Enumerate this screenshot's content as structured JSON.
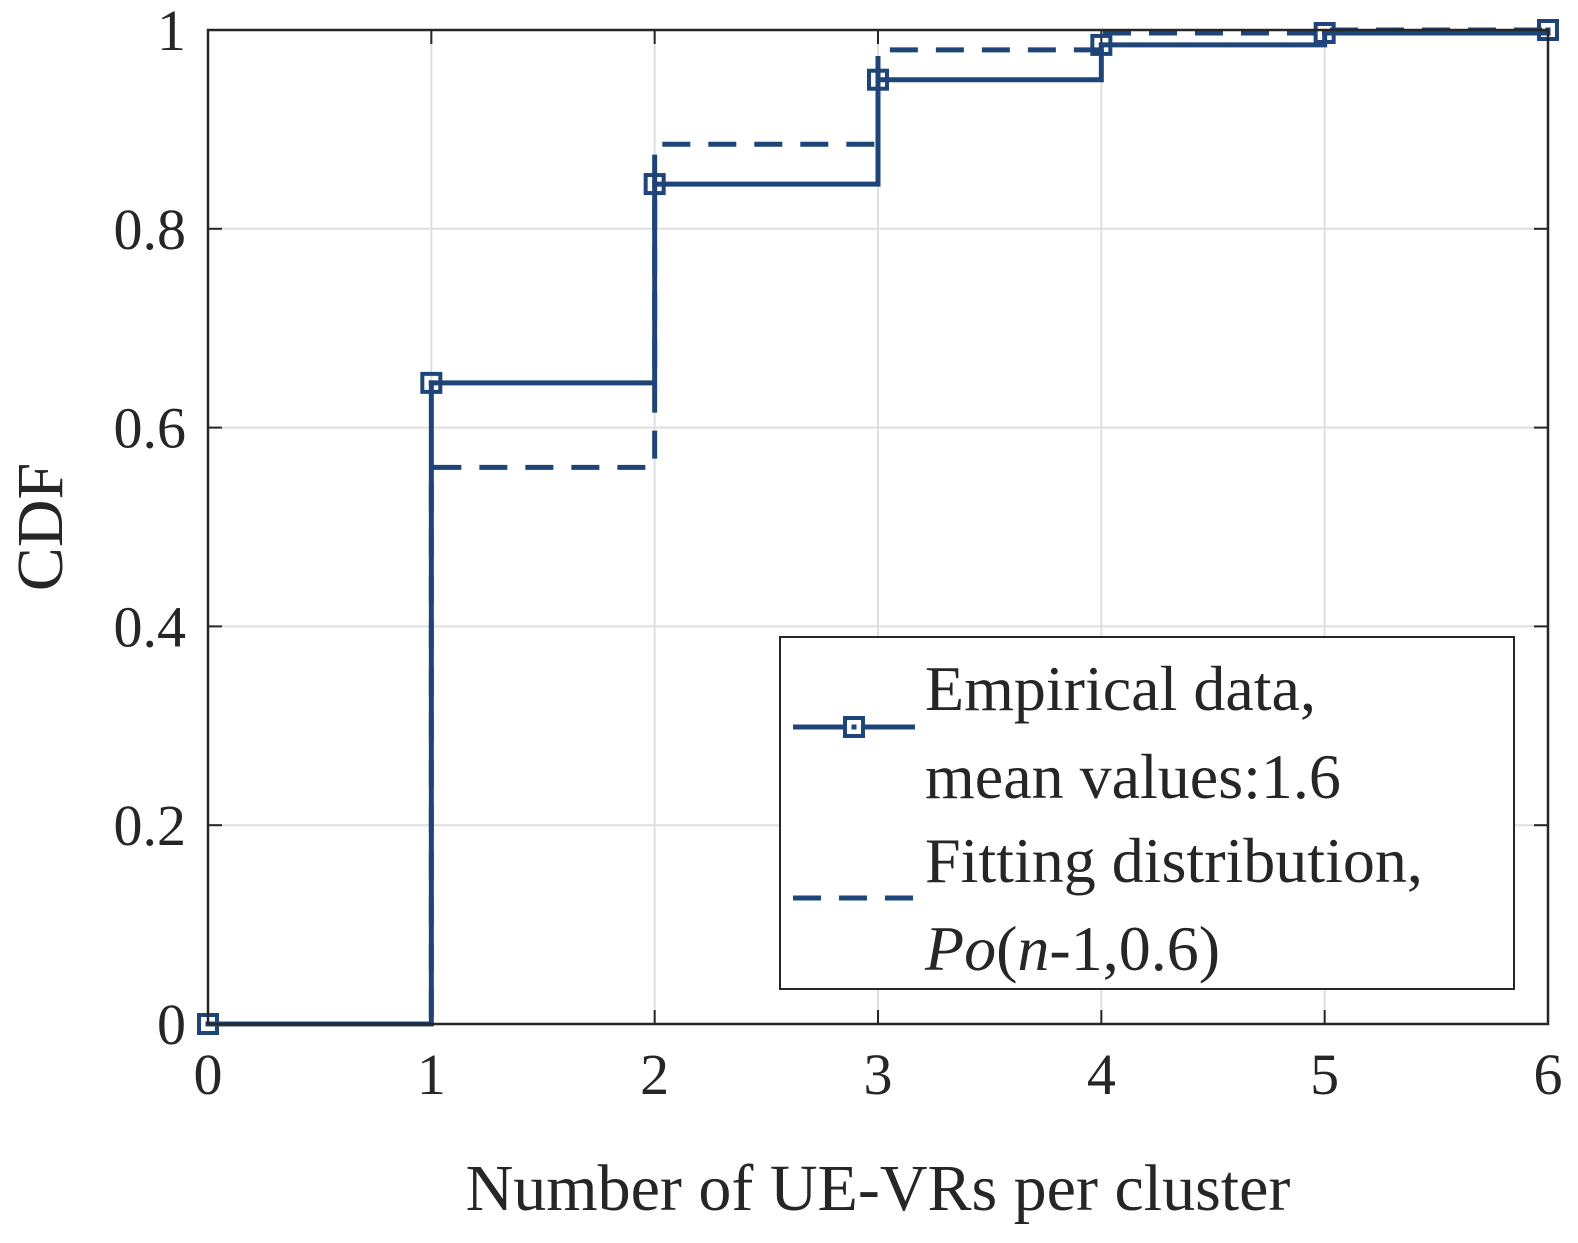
{
  "chart_data": {
    "type": "line",
    "subtype": "step-cdf",
    "title": "",
    "xlabel": "Number of UE-VRs per cluster",
    "ylabel": "CDF",
    "xlim": [
      0,
      6
    ],
    "ylim": [
      0,
      1
    ],
    "xticks": [
      0,
      1,
      2,
      3,
      4,
      5,
      6
    ],
    "xtick_labels": [
      "0",
      "1",
      "2",
      "3",
      "4",
      "5",
      "6"
    ],
    "yticks": [
      0,
      0.2,
      0.4,
      0.6,
      0.8,
      1
    ],
    "ytick_labels": [
      "0",
      "0.2",
      "0.4",
      "0.6",
      "0.8",
      "1"
    ],
    "grid": true,
    "legend_position": "lower-right",
    "line_color": "#1f4477",
    "series": [
      {
        "name": "Empirical data, mean values:1.6",
        "legend_lines": [
          "Empirical data,",
          "mean values:1.6"
        ],
        "style": "solid",
        "marker": "square",
        "x": [
          0,
          1,
          2,
          3,
          4,
          5,
          6
        ],
        "y": [
          0,
          0.645,
          0.845,
          0.95,
          0.985,
          0.997,
          1.0
        ]
      },
      {
        "name": "Fitting distribution, Po(n-1,0.6)",
        "legend_lines": [
          "Fitting distribution,",
          "Po(n-1,0.6)"
        ],
        "legend_formula": {
          "italic_a": "Po",
          "paren_open": "(",
          "italic_b": "n",
          "rest": "-1,0.6)"
        },
        "style": "dashed",
        "marker": "none",
        "x": [
          0,
          1,
          2,
          3,
          4,
          5,
          6
        ],
        "y": [
          0,
          0.56,
          0.885,
          0.98,
          0.997,
          1.0,
          1.0
        ]
      }
    ]
  }
}
